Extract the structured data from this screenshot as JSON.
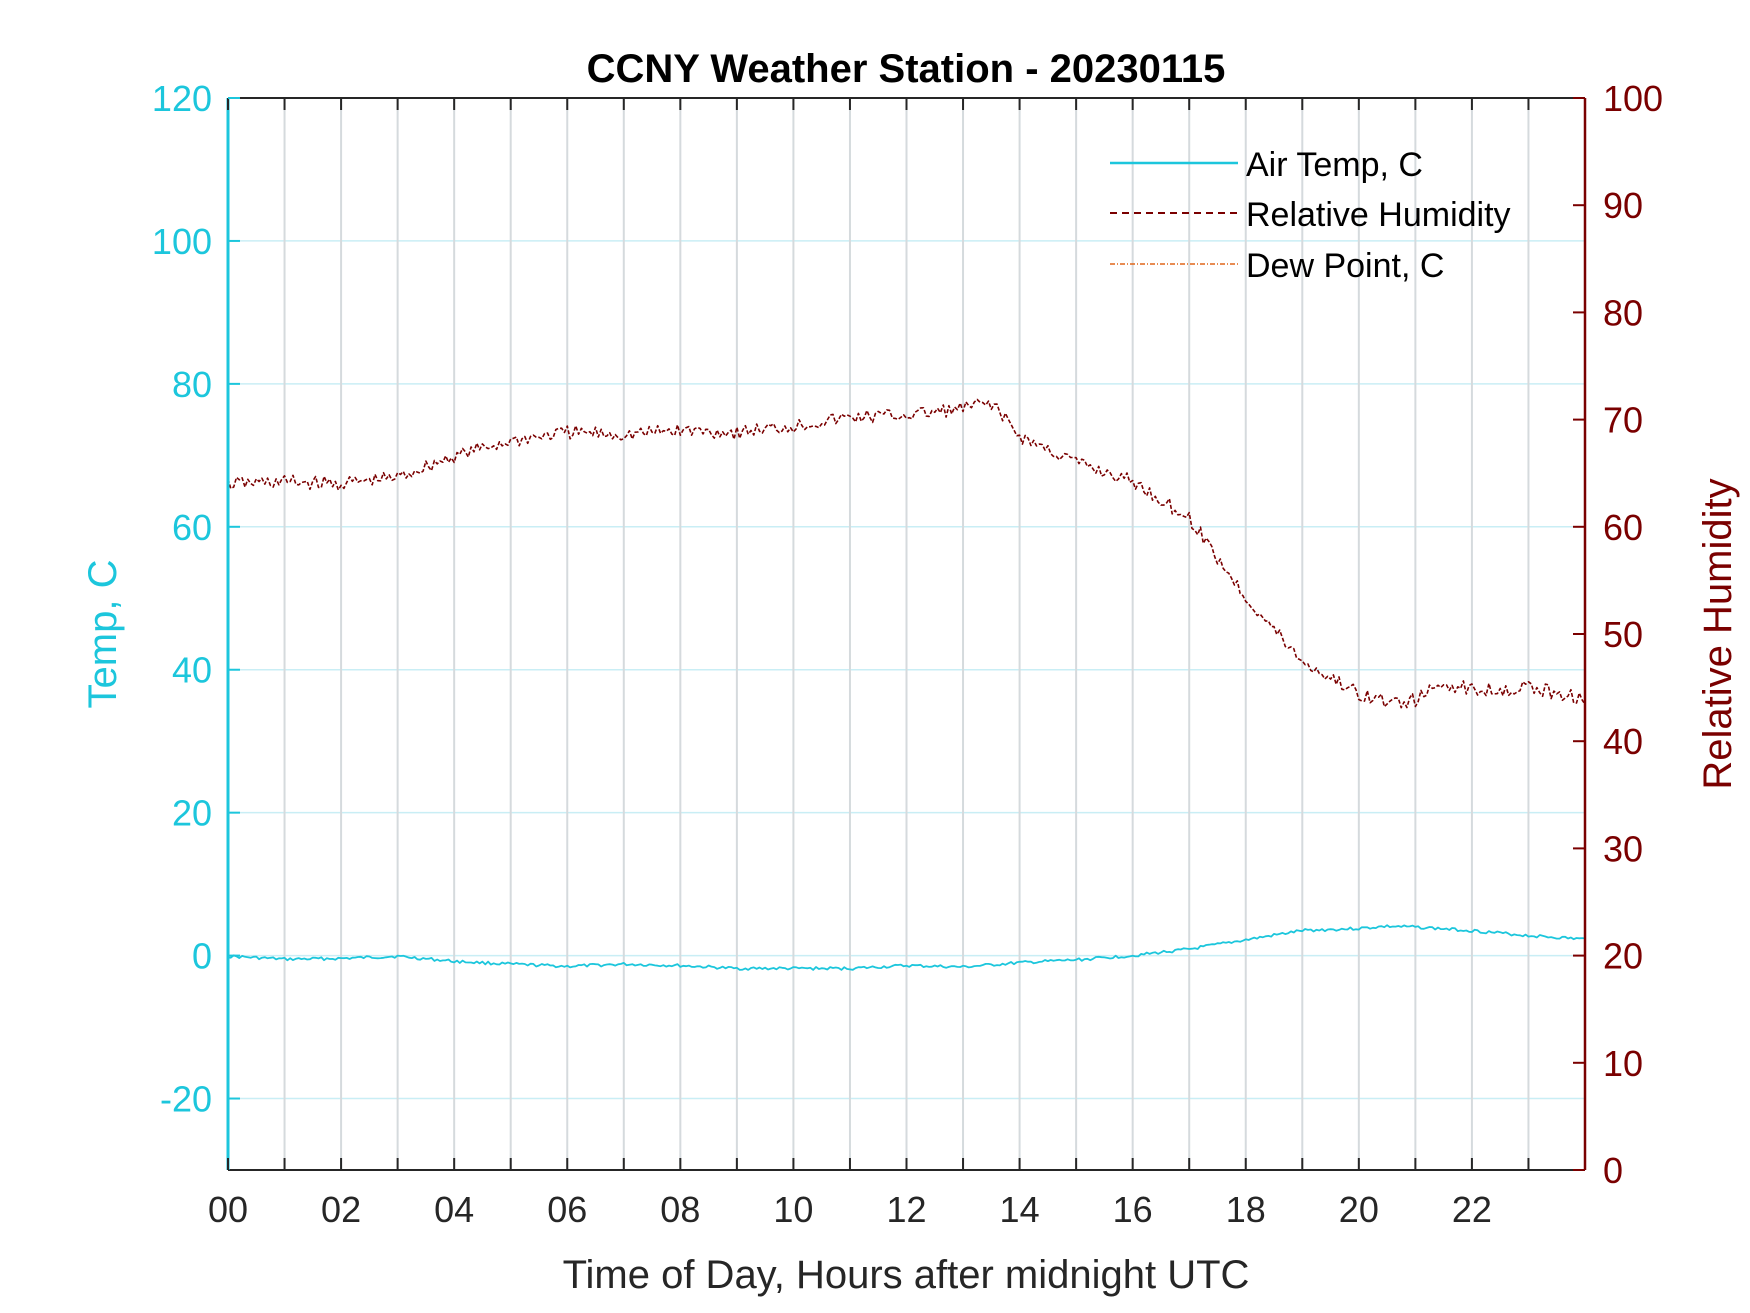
{
  "chart_data": {
    "type": "line",
    "title": "CCNY Weather Station - 20230115",
    "xlabel": "Time of Day, Hours after midnight UTC",
    "ylabel_left": "Temp, C",
    "ylabel_right": "Relative Humidity",
    "xlim": [
      0,
      24
    ],
    "ylim_left": [
      -30,
      120
    ],
    "ylim_right": [
      0,
      100
    ],
    "x_ticks": [
      0,
      2,
      4,
      6,
      8,
      10,
      12,
      14,
      16,
      18,
      20,
      22
    ],
    "x_tick_labels": [
      "00",
      "02",
      "04",
      "06",
      "08",
      "10",
      "12",
      "14",
      "16",
      "18",
      "20",
      "22"
    ],
    "x_grid": [
      0,
      1,
      2,
      3,
      4,
      5,
      6,
      7,
      8,
      9,
      10,
      11,
      12,
      13,
      14,
      15,
      16,
      17,
      18,
      19,
      20,
      21,
      22,
      23
    ],
    "y_ticks_left": [
      -20,
      0,
      20,
      40,
      60,
      80,
      100,
      120
    ],
    "y_tick_labels_left": [
      "-20",
      "0",
      "20",
      "40",
      "60",
      "80",
      "100",
      "120"
    ],
    "y_ticks_right": [
      0,
      10,
      20,
      30,
      40,
      50,
      60,
      70,
      80,
      90,
      100
    ],
    "y_tick_labels_right": [
      "0",
      "10",
      "20",
      "30",
      "40",
      "50",
      "60",
      "70",
      "80",
      "90",
      "100"
    ],
    "legend_position": "top-right",
    "colors": {
      "left_axis": "#1cc6dc",
      "right_axis": "#7a0000",
      "air_temp": "#1cc6dc",
      "humidity": "#7a0000",
      "dew_point": "#e0661a",
      "grid": "#d5dadd",
      "grid_horizontal": "#c9eef5"
    },
    "series": [
      {
        "name": "Air Temp, C",
        "axis": "left",
        "style": "solid",
        "x": [
          0,
          1,
          2,
          3,
          4,
          5,
          6,
          7,
          8,
          9,
          10,
          11,
          12,
          13,
          14,
          15,
          16,
          17,
          18,
          19,
          20,
          20.5,
          21,
          22,
          23,
          24
        ],
        "values": [
          -0.1,
          -0.5,
          -0.4,
          -0.1,
          -0.8,
          -1.2,
          -1.5,
          -1.2,
          -1.4,
          -1.8,
          -1.8,
          -1.8,
          -1.4,
          -1.6,
          -1.0,
          -0.6,
          0.0,
          0.9,
          2.2,
          3.5,
          3.8,
          4.1,
          4.0,
          3.5,
          2.8,
          2.3
        ]
      },
      {
        "name": "Relative Humidity",
        "axis": "right",
        "style": "dashed",
        "x": [
          0,
          1,
          2,
          3,
          4,
          5,
          6,
          7,
          8,
          9,
          10,
          11,
          12,
          13,
          13.5,
          14,
          15,
          16,
          17,
          18,
          19,
          20,
          20.5,
          21,
          21.5,
          22,
          23,
          24
        ],
        "values": [
          64,
          64.2,
          64,
          64.6,
          66.6,
          68,
          68.8,
          68.6,
          69,
          68.8,
          69.4,
          70.2,
          70.4,
          71,
          71.6,
          68.4,
          66,
          64.2,
          60.8,
          53.4,
          47.4,
          44.4,
          43.6,
          43.8,
          45.4,
          44.8,
          45,
          44
        ]
      },
      {
        "name": "Dew Point, C",
        "axis": "left",
        "style": "dash-dot",
        "x": [],
        "values": []
      }
    ]
  }
}
